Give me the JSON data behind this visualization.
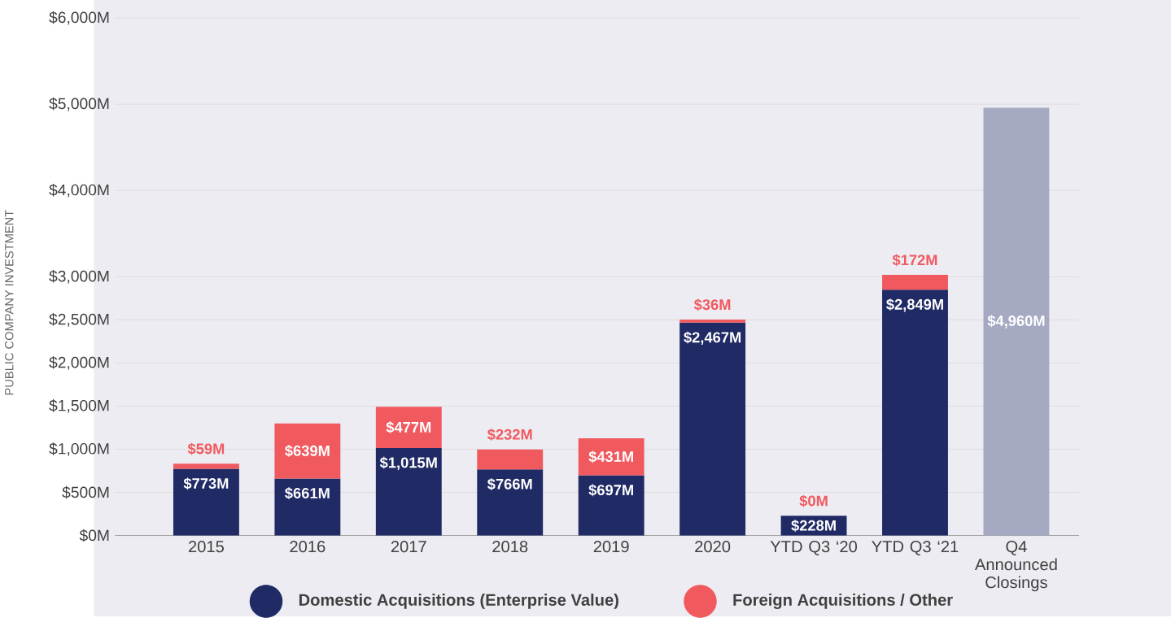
{
  "chart_data": {
    "type": "bar",
    "stacked": true,
    "ylabel": "PUBLIC COMPANY INVESTMENT",
    "categories": [
      "2015",
      "2016",
      "2017",
      "2018",
      "2019",
      "2020",
      "YTD Q3 ‘20",
      "YTD Q3 ‘21",
      "Q4 Announced Closings"
    ],
    "series": [
      {
        "name": "Domestic Acquisitions (Enterprise Value)",
        "color": "#202a65",
        "values": [
          773,
          661,
          1015,
          766,
          697,
          2467,
          228,
          2849,
          null
        ],
        "value_labels": [
          "$773M",
          "$661M",
          "$1,015M",
          "$766M",
          "$697M",
          "$2,467M",
          "$228M",
          "$2,849M",
          null
        ]
      },
      {
        "name": "Foreign Acquisitions / Other",
        "color": "#f05a5f",
        "values": [
          59,
          639,
          477,
          232,
          431,
          36,
          0,
          172,
          null
        ],
        "value_labels": [
          "$59M",
          "$639M",
          "$477M",
          "$232M",
          "$431M",
          "$36M",
          "$0M",
          "$172M",
          null
        ]
      },
      {
        "color": "#a5aac2",
        "values": [
          null,
          null,
          null,
          null,
          null,
          null,
          null,
          null,
          4960
        ],
        "value_labels": [
          null,
          null,
          null,
          null,
          null,
          null,
          null,
          null,
          "$4,960M"
        ]
      }
    ],
    "ylim": [
      0,
      6000
    ],
    "yticks": [
      {
        "value": 0,
        "label": "$0M"
      },
      {
        "value": 500,
        "label": "$500M"
      },
      {
        "value": 1000,
        "label": "$1,000M"
      },
      {
        "value": 1500,
        "label": "$1,500M"
      },
      {
        "value": 2000,
        "label": "$2,000M"
      },
      {
        "value": 2500,
        "label": "$2,500M"
      },
      {
        "value": 3000,
        "label": "$3,000M"
      },
      {
        "value": 4000,
        "label": "$4,000M"
      },
      {
        "value": 5000,
        "label": "$5,000M"
      },
      {
        "value": 6000,
        "label": "$6,000M"
      }
    ],
    "grid": "y",
    "legend": "bottom"
  }
}
